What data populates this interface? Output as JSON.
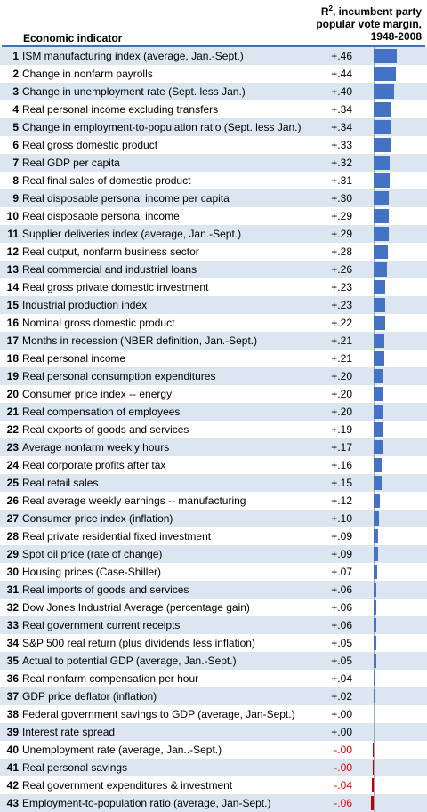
{
  "chart_data": {
    "type": "bar",
    "orientation": "horizontal",
    "header": {
      "indicator_col": "Economic indicator",
      "value_col_prefix": "R",
      "value_col_sup": "2",
      "value_col_rest": ", incumbent party popular vote margin, 1948-2008"
    },
    "colors": {
      "positive": "#4472c4",
      "negative": "#c00000",
      "alt_row": "#dce6f1",
      "header_line": "#3f6fb5"
    },
    "rows": [
      {
        "rank": "1",
        "label": "ISM manufacturing index (average, Jan.-Sept.)",
        "value_text": "+.46",
        "value": 0.46
      },
      {
        "rank": "2",
        "label": "Change in nonfarm payrolls",
        "value_text": "+.44",
        "value": 0.44
      },
      {
        "rank": "3",
        "label": "Change in unemployment rate (Sept. less Jan.)",
        "value_text": "+.40",
        "value": 0.4
      },
      {
        "rank": "4",
        "label": "Real personal income excluding transfers",
        "value_text": "+.34",
        "value": 0.34
      },
      {
        "rank": "5",
        "label": "Change in employment-to-population ratio (Sept. less Jan.)",
        "value_text": "+.34",
        "value": 0.34
      },
      {
        "rank": "6",
        "label": "Real gross domestic product",
        "value_text": "+.33",
        "value": 0.33
      },
      {
        "rank": "7",
        "label": "Real GDP per capita",
        "value_text": "+.32",
        "value": 0.32
      },
      {
        "rank": "8",
        "label": "Real final sales of domestic product",
        "value_text": "+.31",
        "value": 0.31
      },
      {
        "rank": "9",
        "label": "Real disposable personal income per capita",
        "value_text": "+.30",
        "value": 0.3
      },
      {
        "rank": "10",
        "label": "Real disposable personal income",
        "value_text": "+.29",
        "value": 0.29
      },
      {
        "rank": "11",
        "label": "Supplier deliveries index (average, Jan.-Sept.)",
        "value_text": "+.29",
        "value": 0.29
      },
      {
        "rank": "12",
        "label": "Real output, nonfarm business sector",
        "value_text": "+.28",
        "value": 0.28
      },
      {
        "rank": "13",
        "label": "Real commercial and industrial loans",
        "value_text": "+.26",
        "value": 0.26
      },
      {
        "rank": "14",
        "label": "Real gross private domestic investment",
        "value_text": "+.23",
        "value": 0.23
      },
      {
        "rank": "15",
        "label": "Industrial production index",
        "value_text": "+.23",
        "value": 0.23
      },
      {
        "rank": "16",
        "label": "Nominal gross domestic product",
        "value_text": "+.22",
        "value": 0.22
      },
      {
        "rank": "17",
        "label": "Months in recession (NBER definition, Jan.-Sept.)",
        "value_text": "+.21",
        "value": 0.21
      },
      {
        "rank": "18",
        "label": "Real personal income",
        "value_text": "+.21",
        "value": 0.21
      },
      {
        "rank": "19",
        "label": "Real personal consumption expenditures",
        "value_text": "+.20",
        "value": 0.2
      },
      {
        "rank": "20",
        "label": "Consumer price index -- energy",
        "value_text": "+.20",
        "value": 0.2
      },
      {
        "rank": "21",
        "label": "Real compensation of employees",
        "value_text": "+.20",
        "value": 0.2
      },
      {
        "rank": "22",
        "label": "Real exports of goods and services",
        "value_text": "+.19",
        "value": 0.19
      },
      {
        "rank": "23",
        "label": "Average nonfarm weekly hours",
        "value_text": "+.17",
        "value": 0.17
      },
      {
        "rank": "24",
        "label": "Real corporate profits after tax",
        "value_text": "+.16",
        "value": 0.16
      },
      {
        "rank": "25",
        "label": "Real retail sales",
        "value_text": "+.15",
        "value": 0.15
      },
      {
        "rank": "26",
        "label": "Real average weekly earnings -- manufacturing",
        "value_text": "+.12",
        "value": 0.12
      },
      {
        "rank": "27",
        "label": "Consumer price index (inflation)",
        "value_text": "+.10",
        "value": 0.1
      },
      {
        "rank": "28",
        "label": "Real private residential fixed investment",
        "value_text": "+.09",
        "value": 0.09
      },
      {
        "rank": "29",
        "label": "Spot oil price (rate of change)",
        "value_text": "+.09",
        "value": 0.09
      },
      {
        "rank": "30",
        "label": "Housing prices (Case-Shiller)",
        "value_text": "+.07",
        "value": 0.07
      },
      {
        "rank": "31",
        "label": "Real imports of goods and services",
        "value_text": "+.06",
        "value": 0.06
      },
      {
        "rank": "32",
        "label": "Dow Jones Industrial Average (percentage gain)",
        "value_text": "+.06",
        "value": 0.06
      },
      {
        "rank": "33",
        "label": "Real government current receipts",
        "value_text": "+.06",
        "value": 0.06
      },
      {
        "rank": "34",
        "label": "S&P 500 real return (plus dividends less inflation)",
        "value_text": "+.05",
        "value": 0.05
      },
      {
        "rank": "35",
        "label": "Actual to potential GDP (average, Jan.-Sept.)",
        "value_text": "+.05",
        "value": 0.05
      },
      {
        "rank": "36",
        "label": "Real nonfarm compensation per hour",
        "value_text": "+.04",
        "value": 0.04
      },
      {
        "rank": "37",
        "label": "GDP price deflator (inflation)",
        "value_text": "+.02",
        "value": 0.02
      },
      {
        "rank": "38",
        "label": "Federal government savings to GDP (average, Jan-Sept.)",
        "value_text": "+.00",
        "value": 0.0
      },
      {
        "rank": "39",
        "label": "Interest rate spread",
        "value_text": "+.00",
        "value": 0.0
      },
      {
        "rank": "40",
        "label": "Unemployment rate (average, Jan..-Sept.)",
        "value_text": "-.00",
        "value": -0.0
      },
      {
        "rank": "41",
        "label": "Real personal savings",
        "value_text": "-.00",
        "value": -0.0
      },
      {
        "rank": "42",
        "label": "Real government expenditures & investment",
        "value_text": "-.04",
        "value": -0.04
      },
      {
        "rank": "43",
        "label": "Employment-to-population ratio (average, Jan-Sept.)",
        "value_text": "-.06",
        "value": -0.06
      }
    ]
  }
}
